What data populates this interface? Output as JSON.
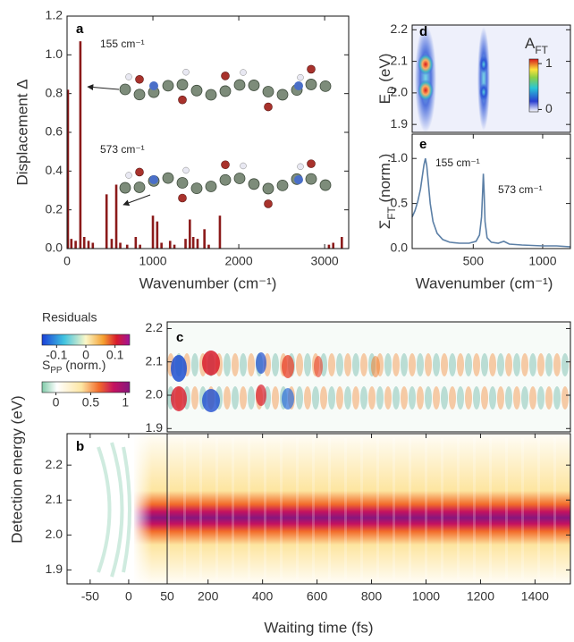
{
  "chart_data": [
    {
      "type": "bar",
      "panel": "a",
      "xlabel": "Wavenumber (cm⁻¹)",
      "ylabel": "Displacement Δ",
      "x": [
        10,
        50,
        100,
        155,
        200,
        250,
        300,
        460,
        520,
        573,
        620,
        700,
        800,
        850,
        1000,
        1050,
        1100,
        1200,
        1250,
        1380,
        1430,
        1470,
        1520,
        1600,
        1650,
        1780,
        3050,
        3100,
        3200
      ],
      "values": [
        0.82,
        0.05,
        0.04,
        1.07,
        0.06,
        0.04,
        0.03,
        0.28,
        0.05,
        0.33,
        0.03,
        0.02,
        0.06,
        0.02,
        0.17,
        0.14,
        0.03,
        0.04,
        0.02,
        0.05,
        0.15,
        0.06,
        0.05,
        0.1,
        0.02,
        0.17,
        0.02,
        0.03,
        0.06
      ],
      "color": "#8b1a1a",
      "xlim": [
        0,
        3280
      ],
      "xticks": [
        0,
        1000,
        2000,
        3000
      ],
      "ylim": [
        0,
        1.2
      ],
      "yticks": [
        {
          "value": 0,
          "label": "0.0"
        },
        0.2,
        0.4,
        0.6,
        0.8,
        {
          "value": 1,
          "label": "1.0"
        },
        1.2
      ],
      "annotations": [
        "155 cm⁻¹",
        "573 cm⁻¹"
      ]
    },
    {
      "type": "heatmap",
      "panel": "d",
      "ylabel": {
        "text": "E",
        "sub": "D",
        "after": " (eV)"
      },
      "ylim": [
        1.875,
        2.215
      ],
      "yticks": [
        1.9,
        {
          "value": 2,
          "label": "2.0"
        },
        2.1,
        2.2
      ],
      "colorbar": {
        "label": {
          "text": "A",
          "sub": "FT"
        },
        "clim": [
          -0.05,
          1.1
        ],
        "ticks": [
          0,
          1
        ]
      }
    },
    {
      "type": "line",
      "panel": "e",
      "xlabel": "Wavenumber (cm⁻¹)",
      "ylabel": {
        "text": "Σ",
        "sub": "FT",
        "after": " (norm.)"
      },
      "x": [
        60,
        80,
        100,
        120,
        135,
        145,
        155,
        165,
        175,
        190,
        210,
        240,
        280,
        330,
        400,
        470,
        520,
        545,
        560,
        568,
        573,
        578,
        585,
        600,
        630,
        680,
        720,
        760,
        850,
        1000,
        1100,
        1200
      ],
      "values": [
        0.35,
        0.42,
        0.52,
        0.66,
        0.82,
        0.93,
        1.0,
        0.92,
        0.75,
        0.5,
        0.3,
        0.17,
        0.1,
        0.07,
        0.06,
        0.06,
        0.08,
        0.15,
        0.35,
        0.65,
        0.83,
        0.65,
        0.3,
        0.12,
        0.07,
        0.06,
        0.08,
        0.05,
        0.04,
        0.03,
        0.03,
        0.02
      ],
      "color": "#5b7fa6",
      "xlim": [
        60,
        1200
      ],
      "xticks": [
        500,
        1000
      ],
      "ylim": [
        0,
        1.27
      ],
      "yticks": [
        {
          "value": 0,
          "label": "0.0"
        },
        0.5,
        {
          "value": 1,
          "label": "1.0"
        }
      ],
      "annotations": [
        "155 cm⁻¹",
        "573 cm⁻¹"
      ]
    },
    {
      "type": "heatmap",
      "panel": "c",
      "ylim": [
        1.89,
        2.22
      ],
      "yticks": [
        1.9,
        {
          "value": 2,
          "label": "2.0"
        },
        2.1,
        2.2
      ],
      "colorbar": {
        "label": "Residuals",
        "clim": [
          -0.15,
          0.15
        ],
        "ticks": [
          -0.1,
          0,
          0.1
        ]
      }
    },
    {
      "type": "heatmap",
      "panel": "b",
      "xlabel": "Waiting time (fs)",
      "ylabel": "Detection energy (eV)",
      "ylim": [
        1.86,
        2.29
      ],
      "yticks": [
        1.9,
        {
          "value": 2,
          "label": "2.0"
        },
        2.1,
        2.2
      ],
      "segments": [
        {
          "xlim": [
            -80,
            50
          ],
          "xticks": [
            -50,
            0,
            50
          ]
        },
        {
          "xlim": [
            50,
            1530
          ],
          "xticks": [
            200,
            400,
            600,
            800,
            1000,
            1200,
            1400
          ]
        }
      ],
      "colorbar": {
        "label": {
          "text": "S",
          "sub": "PP",
          "after": " (norm.)"
        },
        "clim": [
          -0.2,
          1.06
        ],
        "ticks": [
          0,
          0.5,
          1
        ]
      }
    }
  ]
}
